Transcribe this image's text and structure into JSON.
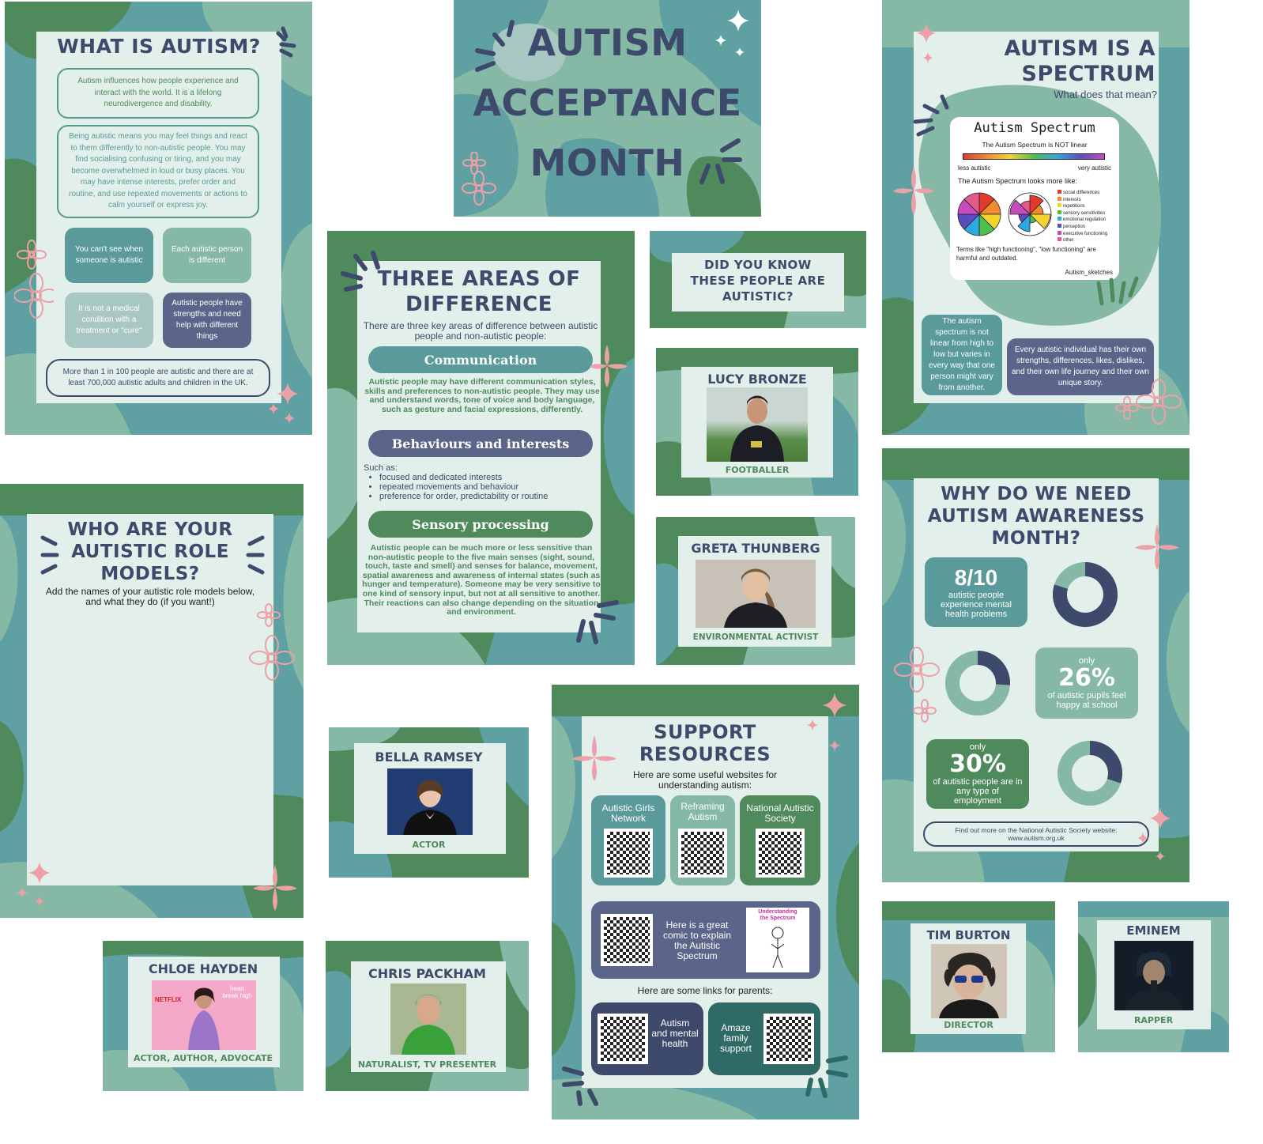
{
  "what_is_autism": {
    "title": "WHAT IS AUTISM?",
    "intro": "Autism influences how people experience and interact with the world. It is a lifelong neurodivergence and disability.",
    "detail": "Being autistic means you may feel things and react to them differently to non-autistic people. You may find socialising confusing or tiring, and you may become overwhelmed in loud or busy places. You may have intense interests, prefer order and routine, and use repeated movements or actions to calm yourself or express joy.",
    "tiles": [
      "You can't see when someone is autistic",
      "Each autistic person is different",
      "It is not a medical condition with a treatment or \"cure\"",
      "Autistic people have strengths and need help with different things"
    ],
    "footer": "More than 1 in 100 people are autistic and there are at least 700,000 autistic adults and children in the UK."
  },
  "acceptance": {
    "line1": "AUTISM",
    "line2": "ACCEPTANCE",
    "line3": "MONTH"
  },
  "spectrum": {
    "title_line1": "AUTISM IS A",
    "title_line2": "SPECTRUM",
    "subtitle": "What does that mean?",
    "sketch_title": "Autism Spectrum",
    "sketch_notlinear": "The Autism Spectrum is NOT linear",
    "sketch_less": "less autistic",
    "sketch_very": "very autistic",
    "sketch_looks": "The Autism Spectrum looks more like:",
    "legend": [
      "social differences",
      "interests",
      "repetitions",
      "sensory sensitivities",
      "emotional regulation",
      "perception",
      "executive functioning",
      "other"
    ],
    "sketch_terms": "Terms like \"high functioning\", \"low functioning\" are harmful and outdated.",
    "sketch_credit": "Autism_sketches",
    "left_box": "The autism spectrum is not linear from high to low but varies in every way that one person might vary from another.",
    "right_box": "Every autistic individual has their own strengths, differences, likes, dislikes, and their own life journey and their own unique story."
  },
  "three_areas": {
    "title_line1": "THREE AREAS OF",
    "title_line2": "DIFFERENCE",
    "intro": "There are three key areas of difference between autistic people and non-autistic people:",
    "communication": "Communication",
    "communication_text": "Autistic people may have different communication styles, skills and preferences to non-autistic people. They may use and understand words, tone of voice and body language, such as gesture and facial expressions, differently.",
    "behaviours": "Behaviours and interests",
    "such_as": "Such as:",
    "bullets": [
      "focused and dedicated interests",
      "repeated movements and behaviour",
      "preference for order, predictability or routine"
    ],
    "sensory": "Sensory processing",
    "sensory_text": "Autistic people can be much more or less sensitive than non-autistic people to the five main senses (sight, sound, touch, taste and smell) and senses for balance, movement, spatial awareness and awareness of internal states (such as hunger and temperature). Someone may be very sensitive to one kind of sensory input, but not at all sensitive to another. Their reactions can also change depending on the situation and environment."
  },
  "did_you_know": {
    "line1": "DID YOU KNOW",
    "line2": "THESE PEOPLE ARE",
    "line3": "AUTISTIC?"
  },
  "people": {
    "lucy": {
      "name": "LUCY BRONZE",
      "role": "FOOTBALLER"
    },
    "greta": {
      "name": "GRETA THUNBERG",
      "role": "ENVIRONMENTAL ACTIVIST"
    },
    "bella": {
      "name": "BELLA RAMSEY",
      "role": "ACTOR"
    },
    "chloe": {
      "name": "CHLOE HAYDEN",
      "role": "ACTOR, AUTHOR, ADVOCATE",
      "photo_text1": "NETFLIX",
      "photo_text2": "heart break high"
    },
    "chris": {
      "name": "CHRIS PACKHAM",
      "role": "NATURALIST, TV PRESENTER"
    },
    "tim": {
      "name": "TIM BURTON",
      "role": "DIRECTOR"
    },
    "eminem": {
      "name": "EMINEM",
      "role": "RAPPER"
    }
  },
  "role_models": {
    "title_line1": "WHO ARE YOUR",
    "title_line2": "AUTISTIC ROLE",
    "title_line3": "MODELS?",
    "subtitle": "Add the names of your autistic role models below, and what they do (if you want!)"
  },
  "awareness": {
    "title_line1": "WHY DO WE NEED",
    "title_line2": "AUTISM AWARENESS",
    "title_line3": "MONTH?",
    "stat1_value": "8/10",
    "stat1_text": "autistic people experience mental health problems",
    "stat2_only": "only",
    "stat2_value": "26%",
    "stat2_text": "of autistic pupils feel happy at school",
    "stat3_only": "only",
    "stat3_value": "30%",
    "stat3_text": "of autistic people are in any type of employment",
    "footer_line1": "Find out more on the National Autistic Society website:",
    "footer_line2": "www.autism.org.uk"
  },
  "donuts": [
    {
      "percent": 80,
      "color": "#3d4a6b"
    },
    {
      "percent": 26,
      "color": "#3d4a6b"
    },
    {
      "percent": 30,
      "color": "#3d4a6b"
    }
  ],
  "support": {
    "title_line1": "SUPPORT",
    "title_line2": "RESOURCES",
    "intro": "Here are some useful websites for understanding autism:",
    "res1": "Autistic Girls Network",
    "res2": "Reframing Autism",
    "res3": "National Autistic Society",
    "comic": "Here is a great comic to explain the Autistic Spectrum",
    "comic_label1": "Understanding",
    "comic_label2": "the Spectrum",
    "parents": "Here are some links for parents:",
    "parent1": "Autism and mental health",
    "parent2": "Amaze family support"
  },
  "colors": {
    "navy": "#3d4a6b",
    "teal": "#5a9a9a",
    "green": "#4f8a5c",
    "sage": "#86b8a6",
    "pink": "#eca1a6",
    "card": "#e3efea"
  }
}
